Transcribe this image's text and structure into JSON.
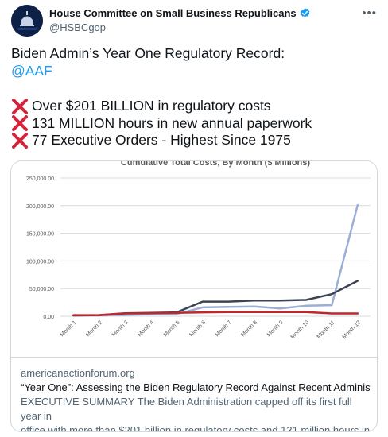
{
  "author": {
    "display_name": "House Committee on Small Business Republicans",
    "handle": "@HSBCgop",
    "verified": true,
    "avatar_text": "SMALL BUSINESS"
  },
  "tweet": {
    "line1": "Biden Admin’s Year One Regulatory Record:",
    "mention": "@AAF",
    "bullets": [
      "Over $201 BILLION in regulatory costs",
      "131 MILLION hours in new annual paperwork",
      "77 Executive Orders - Highest Since 1975"
    ]
  },
  "card": {
    "domain": "americanactionforum.org",
    "title": "“Year One”: Assessing the Biden Regulatory Record Against Recent Administra...",
    "desc_line1": "EXECUTIVE SUMMARY The Biden Administration capped off its first full year in",
    "desc_line2": "office with more than $201 billion in regulatory costs and 131 million hours in ..."
  },
  "chart_data": {
    "type": "line",
    "title": "Cumulative Total Costs, By Month ($ Millions)",
    "categories": [
      "Month 1",
      "Month 2",
      "Month 3",
      "Month 4",
      "Month 5",
      "Month 6",
      "Month 7",
      "Month 8",
      "Month 9",
      "Month 10",
      "Month 11",
      "Month 12"
    ],
    "y_tick_labels": [
      "250,000.00",
      "200,000.00",
      "150,000.00",
      "100,000.00",
      "50,000.00",
      "0.00"
    ],
    "ylim": [
      0,
      250000
    ],
    "grid": true,
    "series": [
      {
        "color": "#9aaed8",
        "values": [
          1000,
          1500,
          2500,
          3500,
          4000,
          16000,
          17000,
          17500,
          14000,
          19000,
          20000,
          201000
        ]
      },
      {
        "color": "#3c4454",
        "values": [
          1500,
          2000,
          5500,
          6000,
          7000,
          26500,
          26500,
          28500,
          28500,
          29500,
          40000,
          64000
        ]
      },
      {
        "color": "#c0272d",
        "values": [
          2000,
          2000,
          5000,
          5500,
          6000,
          7000,
          7500,
          7500,
          7500,
          7500,
          5000,
          5000
        ]
      }
    ]
  }
}
